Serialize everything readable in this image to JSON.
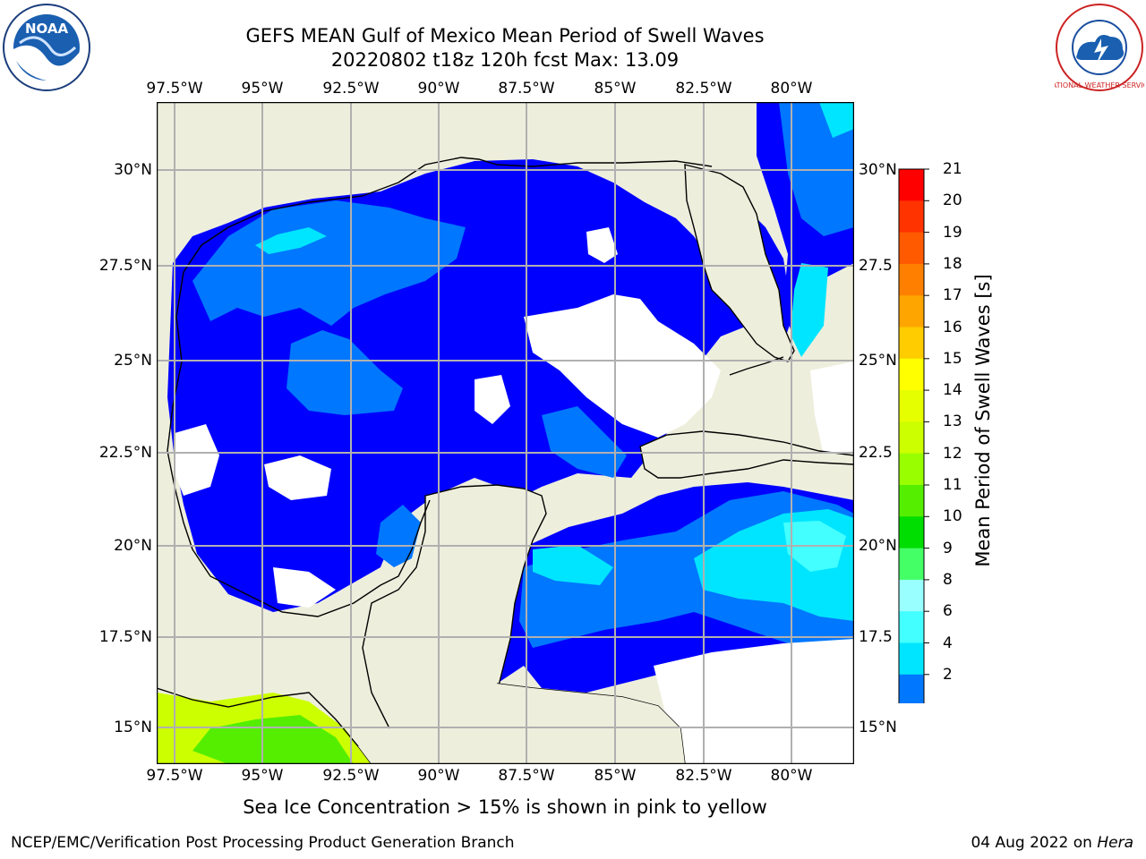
{
  "title_line1": "GEFS MEAN Gulf of Mexico Mean Period of Swell Waves",
  "title_line2": "20220802 t18z 120h fcst   Max: 13.09",
  "lon_labels": [
    "97.5°W",
    "95°W",
    "92.5°W",
    "90°W",
    "87.5°W",
    "85°W",
    "82.5°W",
    "80°W"
  ],
  "lat_labels_left": [
    "30°N",
    "27.5°N",
    "25°N",
    "22.5°N",
    "20°N",
    "17.5°N",
    "15°N"
  ],
  "lat_labels_right": [
    "30°N",
    "27.5",
    "25°N",
    "22.5",
    "20°N",
    "17.5",
    "15°N"
  ],
  "colorbar": {
    "ticks": [
      "21",
      "20",
      "19",
      "18",
      "17",
      "16",
      "15",
      "14",
      "13",
      "12",
      "11",
      "10",
      "9",
      "8",
      "6",
      "4",
      "2"
    ],
    "label": "Mean Period of Swell Waves [s]",
    "colors": [
      "#ff0000",
      "#ff3300",
      "#ff5a00",
      "#ff8000",
      "#ffa500",
      "#ffcc00",
      "#ffff00",
      "#e6ff00",
      "#ccff00",
      "#99ff00",
      "#55ee00",
      "#00dd00",
      "#44ff66",
      "#99ffff",
      "#44ffff",
      "#00e5ff",
      "#0077ff",
      "#0000ff"
    ]
  },
  "field_colors": {
    "land": "#eeeedd",
    "dark_blue": "#0000ff",
    "mid_blue": "#0077ff",
    "cyan": "#00e5ff",
    "light_cyan": "#44ffff",
    "yellow_green": "#ccff00",
    "green": "#55ee00"
  },
  "note": "Sea Ice Concentration > 15% is shown in pink to yellow",
  "credit": "NCEP/EMC/Verification Post Processing Product Generation Branch",
  "date": "04 Aug 2022 on",
  "machine": "Hera",
  "logos": {
    "left": "NOAA",
    "right": "NATIONAL WEATHER SERVICE"
  }
}
